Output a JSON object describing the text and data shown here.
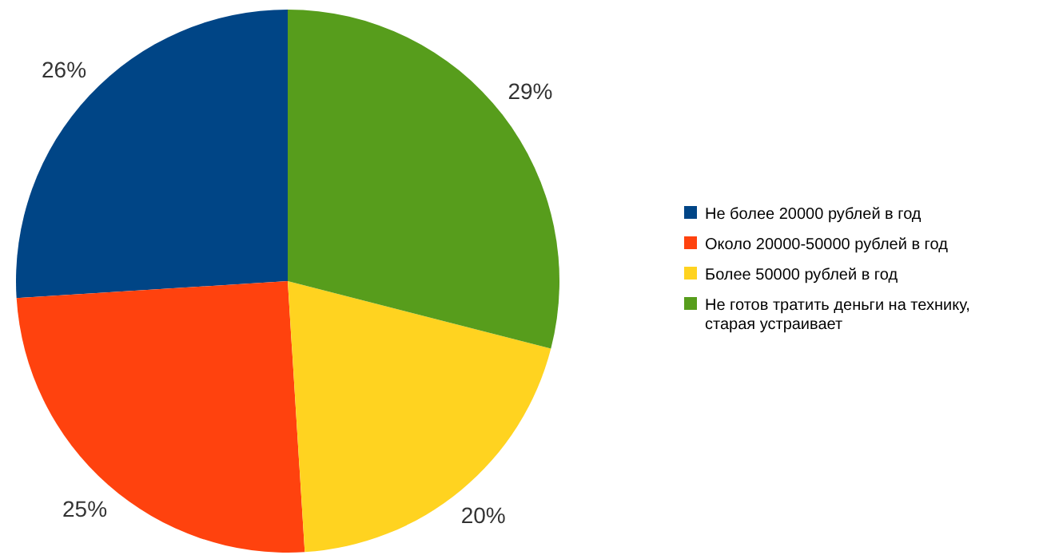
{
  "chart_data": {
    "type": "pie",
    "categories": [
      "Не более 20000 рублей в год",
      "Около 20000-50000 рублей в год",
      "Более 50000 рублей в год",
      "Не готов тратить деньги на технику, старая устраивает"
    ],
    "values": [
      26,
      25,
      20,
      29
    ],
    "colors": [
      "#004586",
      "#ff420e",
      "#ffd320",
      "#579d1c"
    ],
    "value_labels": [
      "26%",
      "25%",
      "20%",
      "29%"
    ],
    "legend": "right"
  }
}
